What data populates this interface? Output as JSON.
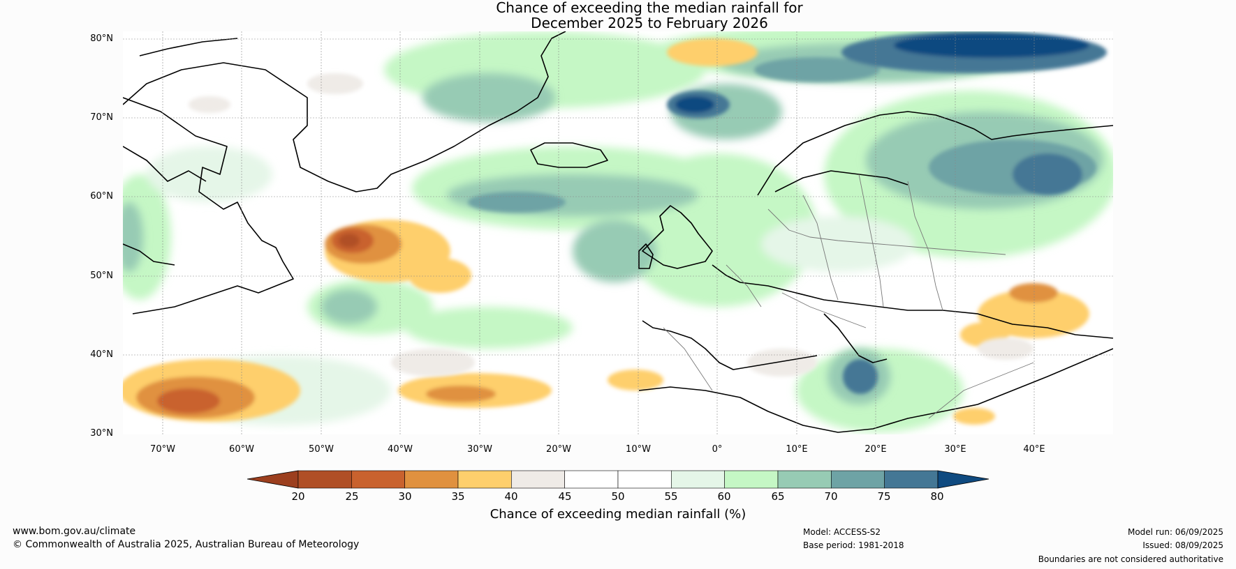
{
  "title_line1": "Chance of exceeding the median rainfall for",
  "title_line2": "December 2025 to February 2026",
  "map": {
    "projection": "plate-carree",
    "region": "North Atlantic and Europe",
    "lon_range": [
      -75,
      50
    ],
    "lat_range": [
      30,
      81
    ],
    "grid": true,
    "lat_labels": [
      "80°N",
      "70°N",
      "60°N",
      "50°N",
      "40°N",
      "30°N"
    ],
    "lon_labels": [
      "70°W",
      "60°W",
      "50°W",
      "40°W",
      "30°W",
      "20°W",
      "10°W",
      "0°",
      "10°E",
      "20°E",
      "30°E",
      "40°E"
    ],
    "highlights": [
      {
        "area": "Svalbard / Barents Sea",
        "category": "75-80+"
      },
      {
        "area": "Norwegian Sea",
        "category": "75-80+"
      },
      {
        "area": "Western Russia / Baltic",
        "category": "70-80"
      },
      {
        "area": "Labrador Sea / central North Atlantic",
        "category": "65-75"
      },
      {
        "area": "East of Newfoundland",
        "category": "20-35"
      },
      {
        "area": "Subtropical western Atlantic",
        "category": "20-35"
      },
      {
        "area": "Eastern Mediterranean / Turkey",
        "category": "25-40"
      },
      {
        "area": "Central Mediterranean (Libya coast)",
        "category": "70-80"
      }
    ]
  },
  "colorbar": {
    "label": "Chance of exceeding median rainfall (%)",
    "ticks": [
      "20",
      "25",
      "30",
      "35",
      "40",
      "45",
      "50",
      "55",
      "60",
      "65",
      "70",
      "75",
      "80"
    ],
    "under_color": "#9c3f1e",
    "over_color": "#0f4a80",
    "colors": [
      "#b04f26",
      "#c9622e",
      "#e0913f",
      "#fecf6c",
      "#efebe7",
      "#ffffff",
      "#ffffff",
      "#e5f6e8",
      "#c5f7c5",
      "#97cbb4",
      "#6ea3a5",
      "#447795"
    ]
  },
  "footer": {
    "website": "www.bom.gov.au/climate",
    "copyright": "© Commonwealth of Australia 2025, Australian Bureau of Meteorology",
    "model": "Model: ACCESS-S2",
    "base_period": "Base period: 1981-2018",
    "model_run": "Model run: 06/09/2025",
    "issued": "Issued: 08/09/2025",
    "disclaimer": "Boundaries are not considered authoritative"
  }
}
